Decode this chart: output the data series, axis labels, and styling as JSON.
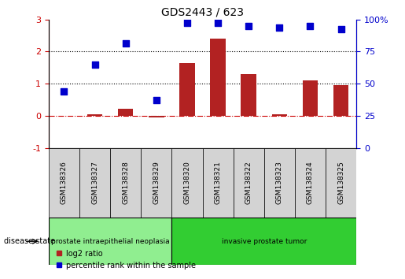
{
  "title": "GDS2443 / 623",
  "samples": [
    "GSM138326",
    "GSM138327",
    "GSM138328",
    "GSM138329",
    "GSM138320",
    "GSM138321",
    "GSM138322",
    "GSM138323",
    "GSM138324",
    "GSM138325"
  ],
  "log2_ratio": [
    0.0,
    0.05,
    0.22,
    -0.05,
    1.65,
    2.4,
    1.3,
    0.05,
    1.1,
    0.95
  ],
  "percentile_rank": [
    0.75,
    1.6,
    2.25,
    0.5,
    2.9,
    2.9,
    2.8,
    2.75,
    2.8,
    2.7
  ],
  "disease_groups": [
    {
      "label": "prostate intraepithelial neoplasia",
      "start": 0,
      "end": 4,
      "color": "#90ee90"
    },
    {
      "label": "invasive prostate tumor",
      "start": 4,
      "end": 10,
      "color": "#32cd32"
    }
  ],
  "bar_color": "#b22222",
  "dot_color": "#0000cc",
  "hline_color": "#cc0000",
  "hline_style": "-.",
  "dotted_line_color": "black",
  "ylim_left": [
    -1,
    3
  ],
  "ylim_right": [
    0,
    100
  ],
  "yticks_left": [
    -1,
    0,
    1,
    2,
    3
  ],
  "yticks_right": [
    0,
    25,
    50,
    75,
    100
  ],
  "ytick_labels_right": [
    "0",
    "25",
    "50",
    "75",
    "100%"
  ],
  "dotted_hlines": [
    1,
    2
  ],
  "legend_items": [
    "log2 ratio",
    "percentile rank within the sample"
  ],
  "background_color": "#ffffff",
  "plot_bg_color": "#ffffff",
  "label_area_color": "#d3d3d3"
}
